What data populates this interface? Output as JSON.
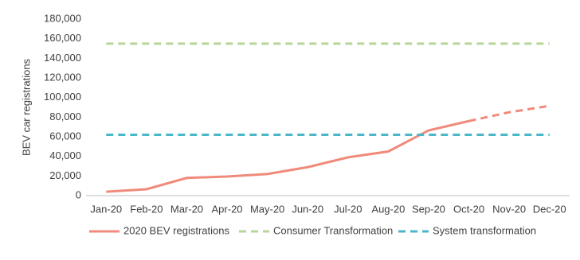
{
  "chart_data": {
    "type": "line",
    "y_label": "BEV car registrations",
    "categories": [
      "Jan-20",
      "Feb-20",
      "Mar-20",
      "Apr-20",
      "May-20",
      "Jun-20",
      "Jul-20",
      "Aug-20",
      "Sep-20",
      "Oct-20",
      "Nov-20",
      "Dec-20"
    ],
    "series": [
      {
        "name": "2020 BEV registrations",
        "color": "#f08a7b",
        "dashed_from_index": 9,
        "values": [
          4000,
          6500,
          18000,
          19500,
          22000,
          29000,
          39000,
          45000,
          66500,
          76000,
          85000,
          91500
        ]
      },
      {
        "name": "Consumer Transformation",
        "color": "#b6d69b",
        "dashed": true,
        "values": [
          155000,
          155000,
          155000,
          155000,
          155000,
          155000,
          155000,
          155000,
          155000,
          155000,
          155000,
          155000
        ]
      },
      {
        "name": "System transformation",
        "color": "#4ab7c6",
        "dashed": true,
        "values": [
          62000,
          62000,
          62000,
          62000,
          62000,
          62000,
          62000,
          62000,
          62000,
          62000,
          62000,
          62000
        ]
      }
    ],
    "ylim": [
      0,
      180000
    ],
    "yticks": [
      {
        "value": 0,
        "label": "0"
      },
      {
        "value": 20000,
        "label": "20,000"
      },
      {
        "value": 40000,
        "label": "40,000"
      },
      {
        "value": 60000,
        "label": "60,000"
      },
      {
        "value": 80000,
        "label": "80,000"
      },
      {
        "value": 100000,
        "label": "100,000"
      },
      {
        "value": 120000,
        "label": "120,000"
      },
      {
        "value": 140000,
        "label": "140,000"
      },
      {
        "value": 160000,
        "label": "160,000"
      },
      {
        "value": 180000,
        "label": "180,000"
      }
    ],
    "grid": false,
    "legend": "bottom"
  }
}
